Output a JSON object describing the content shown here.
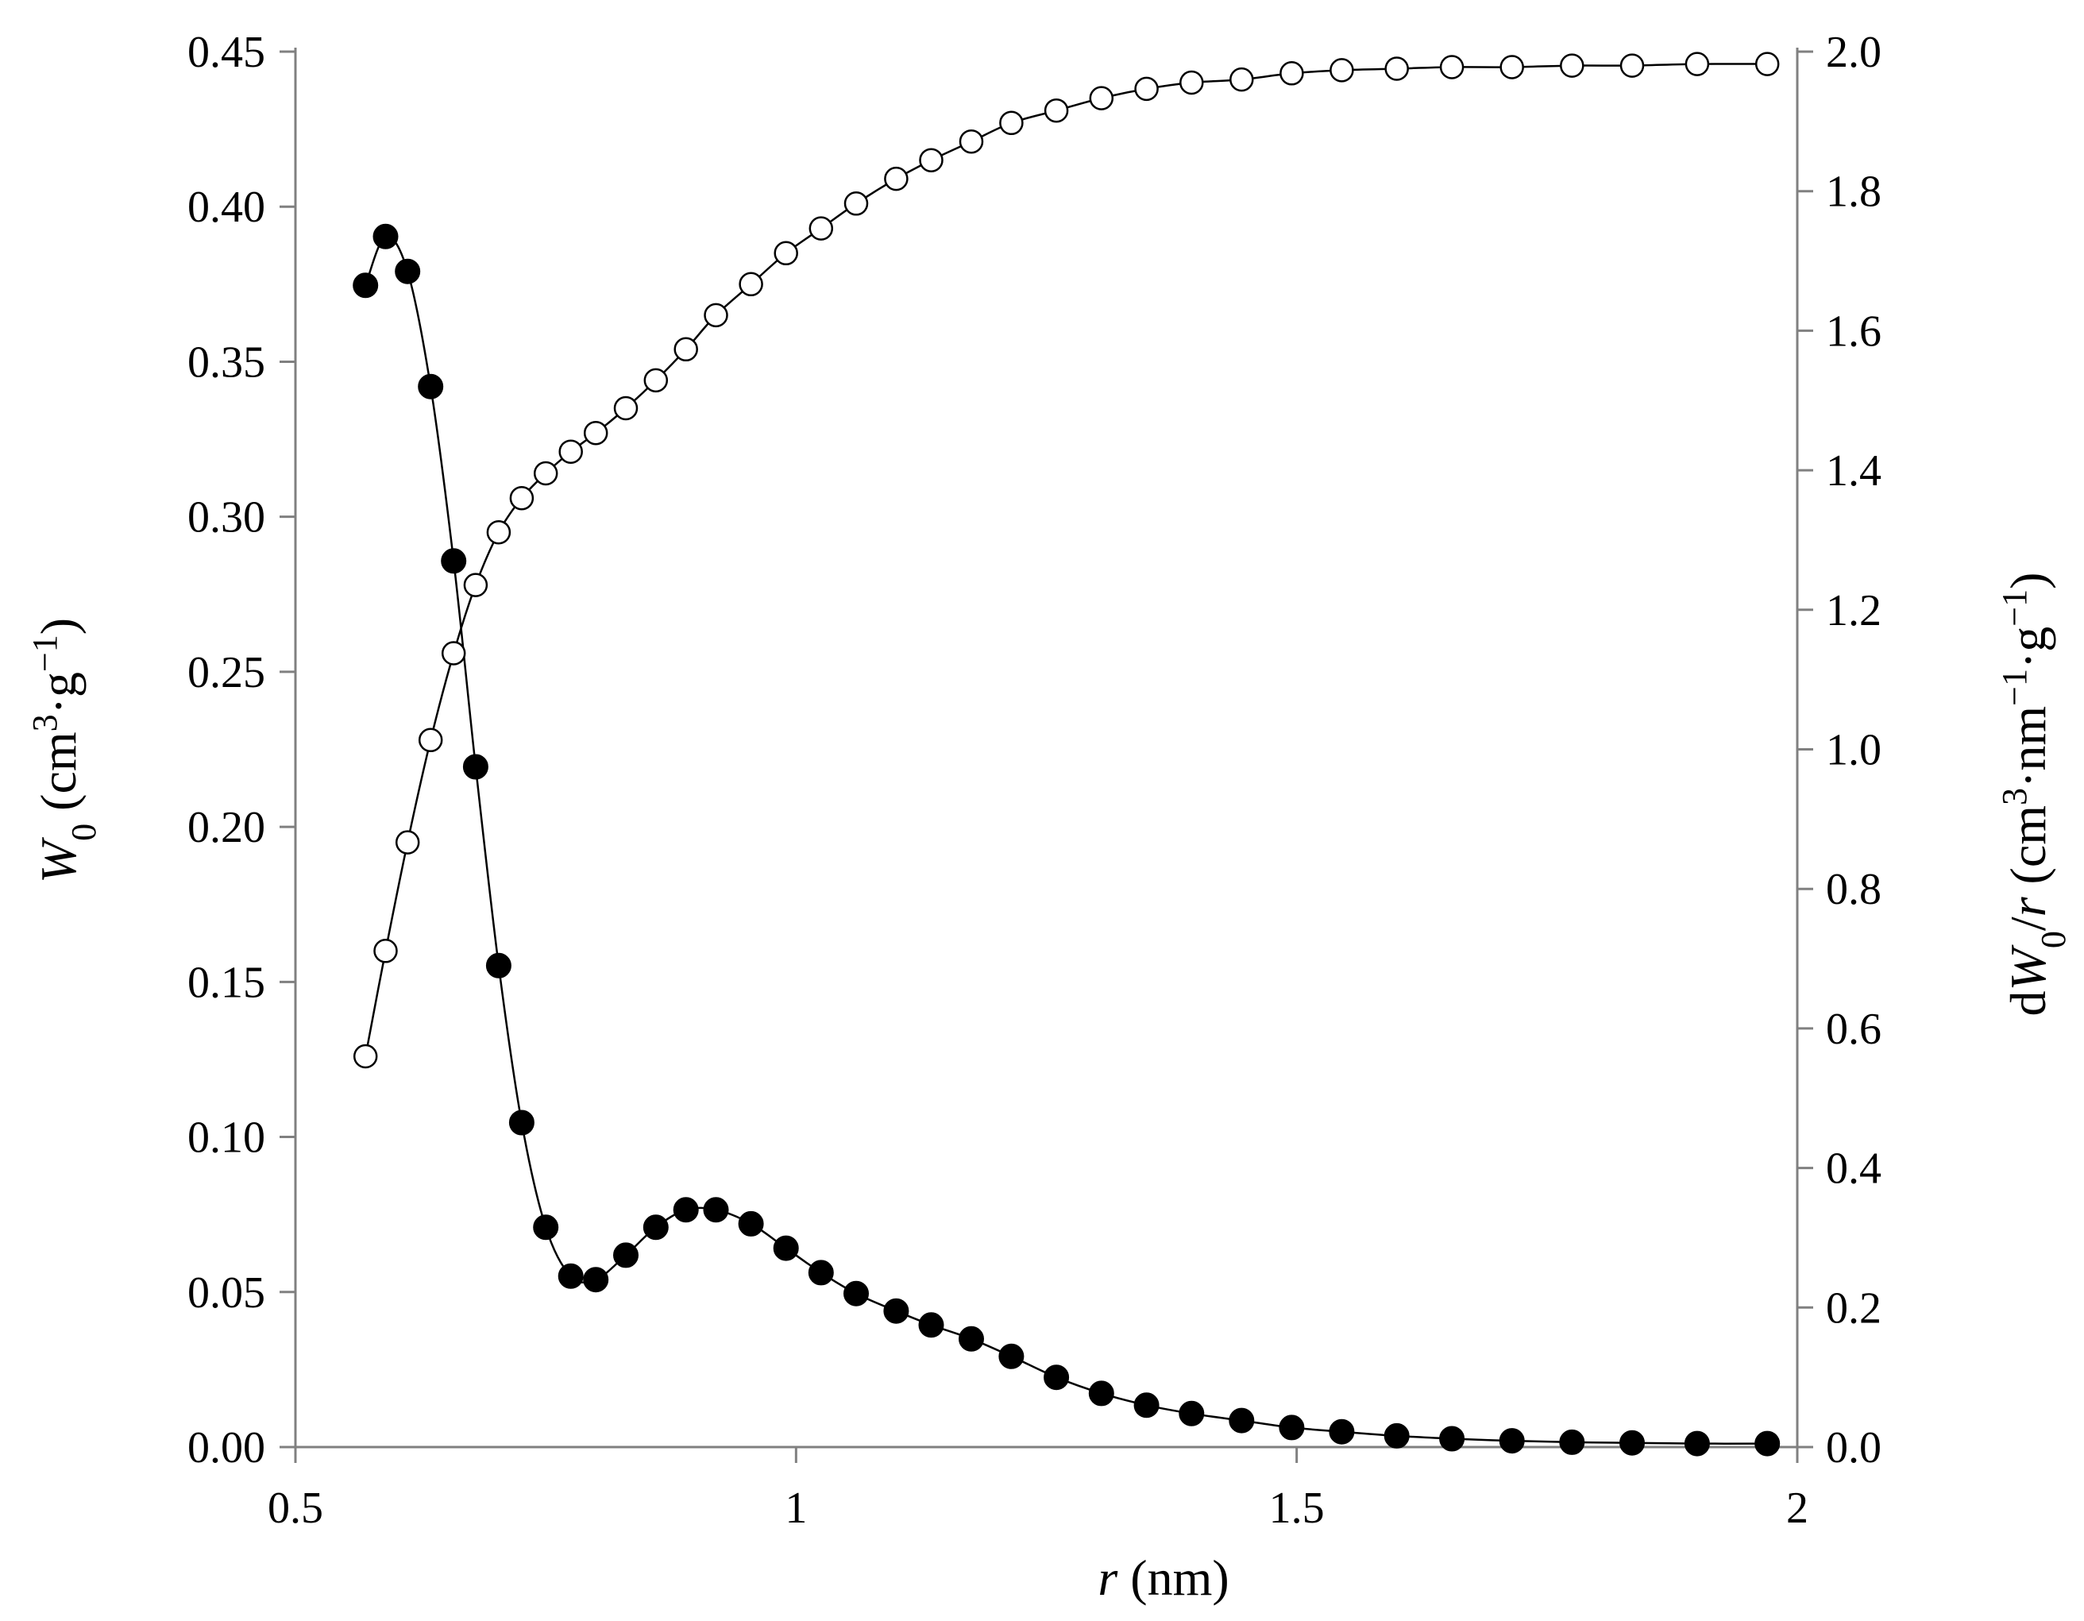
{
  "chart_data": {
    "type": "scatter",
    "x_axis": {
      "label_var": "r",
      "label_unit": " (nm)",
      "range": [
        0.5,
        2
      ],
      "ticks": [
        0.5,
        1,
        1.5,
        2
      ],
      "tick_labels": [
        "0.5",
        "1",
        "1.5",
        "2"
      ]
    },
    "y_left": {
      "label_var": "W",
      "label_sub": "0",
      "label_unit_pre": " (cm",
      "label_unit_mid": "·g",
      "label_unit_post": ")",
      "sup3": "3",
      "supneg1": "−1",
      "range": [
        0,
        0.45
      ],
      "ticks": [
        0,
        0.05,
        0.1,
        0.15,
        0.2,
        0.25,
        0.3,
        0.35,
        0.4,
        0.45
      ],
      "tick_labels": [
        "0.00",
        "0.05",
        "0.10",
        "0.15",
        "0.20",
        "0.25",
        "0.30",
        "0.35",
        "0.40",
        "0.45"
      ]
    },
    "y_right": {
      "label_d": "d",
      "label_var": "W",
      "label_sub": "0",
      "label_slash": "/",
      "label_r": "r",
      "label_unit_pre": " (cm",
      "label_unit_mid": "·nm",
      "label_unit_mid2": "·g",
      "label_unit_post": ")",
      "sup3": "3",
      "supneg1": "−1",
      "range": [
        0,
        2.0
      ],
      "ticks": [
        0,
        0.2,
        0.4,
        0.6,
        0.8,
        1.0,
        1.2,
        1.4,
        1.6,
        1.8,
        2.0
      ],
      "tick_labels": [
        "0.0",
        "0.2",
        "0.4",
        "0.6",
        "0.8",
        "1.0",
        "1.2",
        "1.4",
        "1.6",
        "1.8",
        "2.0"
      ]
    },
    "grid": false,
    "series": [
      {
        "axis": "left",
        "marker": "open-circle",
        "x": [
          0.57,
          0.59,
          0.612,
          0.635,
          0.658,
          0.68,
          0.703,
          0.726,
          0.75,
          0.775,
          0.8,
          0.83,
          0.86,
          0.89,
          0.92,
          0.955,
          0.99,
          1.025,
          1.06,
          1.1,
          1.135,
          1.175,
          1.215,
          1.26,
          1.305,
          1.35,
          1.395,
          1.445,
          1.495,
          1.545,
          1.6,
          1.655,
          1.715,
          1.775,
          1.835,
          1.9,
          1.97
        ],
        "y": [
          0.126,
          0.16,
          0.195,
          0.228,
          0.256,
          0.278,
          0.295,
          0.306,
          0.314,
          0.321,
          0.327,
          0.335,
          0.344,
          0.354,
          0.365,
          0.375,
          0.385,
          0.393,
          0.401,
          0.409,
          0.415,
          0.421,
          0.427,
          0.431,
          0.435,
          0.438,
          0.44,
          0.441,
          0.443,
          0.444,
          0.4445,
          0.445,
          0.445,
          0.4455,
          0.4455,
          0.446,
          0.446
        ]
      },
      {
        "axis": "right",
        "marker": "filled-circle",
        "x": [
          0.57,
          0.59,
          0.612,
          0.635,
          0.658,
          0.68,
          0.703,
          0.726,
          0.75,
          0.775,
          0.8,
          0.83,
          0.86,
          0.89,
          0.92,
          0.955,
          0.99,
          1.025,
          1.06,
          1.1,
          1.135,
          1.175,
          1.215,
          1.26,
          1.305,
          1.35,
          1.395,
          1.445,
          1.495,
          1.545,
          1.6,
          1.655,
          1.715,
          1.775,
          1.835,
          1.9,
          1.97
        ],
        "y": [
          1.665,
          1.735,
          1.685,
          1.52,
          1.27,
          0.975,
          0.69,
          0.465,
          0.315,
          0.245,
          0.24,
          0.275,
          0.315,
          0.34,
          0.34,
          0.32,
          0.285,
          0.25,
          0.22,
          0.195,
          0.175,
          0.155,
          0.13,
          0.1,
          0.077,
          0.06,
          0.048,
          0.038,
          0.028,
          0.022,
          0.016,
          0.012,
          0.009,
          0.007,
          0.006,
          0.005,
          0.005
        ]
      }
    ]
  }
}
